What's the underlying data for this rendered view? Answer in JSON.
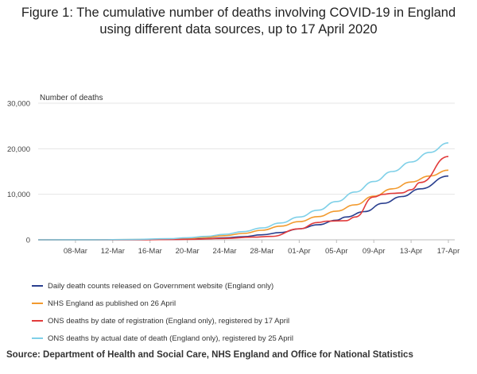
{
  "figure": {
    "title_line1": "Figure 1: The cumulative number of deaths involving COVID-19 in England",
    "title_line2": "using different data sources, up to 17 April 2020",
    "source": "Source: Department of Health and Social Care, NHS England and Office for National Statistics"
  },
  "chart_data": {
    "type": "line",
    "title": "Figure 1: The cumulative number of deaths involving COVID-19 in England using different data sources, up to 17 April 2020",
    "ylabel": "Number of deaths",
    "xlabel": "",
    "ylim": [
      0,
      30000
    ],
    "yticks": [
      0,
      10000,
      20000,
      30000
    ],
    "ytick_labels": [
      "0",
      "10,000",
      "20,000",
      "30,000"
    ],
    "x_start": "2020-03-04",
    "x_end": "2020-04-17",
    "xtick_labels": [
      "08-Mar",
      "12-Mar",
      "16-Mar",
      "20-Mar",
      "24-Mar",
      "28-Mar",
      "01-Apr",
      "05-Apr",
      "09-Apr",
      "13-Apr",
      "17-Apr"
    ],
    "xtick_dates": [
      "2020-03-08",
      "2020-03-12",
      "2020-03-16",
      "2020-03-20",
      "2020-03-24",
      "2020-03-28",
      "2020-04-01",
      "2020-04-05",
      "2020-04-09",
      "2020-04-13",
      "2020-04-17"
    ],
    "grid": true,
    "legend_position": "bottom",
    "series": [
      {
        "name": "Daily death counts released on Government website (England only)",
        "color": "#2a3f8f",
        "points": [
          [
            "2020-03-04",
            0
          ],
          [
            "2020-03-10",
            10
          ],
          [
            "2020-03-14",
            30
          ],
          [
            "2020-03-18",
            90
          ],
          [
            "2020-03-22",
            250
          ],
          [
            "2020-03-24",
            430
          ],
          [
            "2020-03-26",
            700
          ],
          [
            "2020-03-28",
            1100
          ],
          [
            "2020-03-30",
            1600
          ],
          [
            "2020-04-01",
            2400
          ],
          [
            "2020-04-03",
            3300
          ],
          [
            "2020-04-05",
            4300
          ],
          [
            "2020-04-06",
            5000
          ],
          [
            "2020-04-08",
            6200
          ],
          [
            "2020-04-10",
            8000
          ],
          [
            "2020-04-12",
            9500
          ],
          [
            "2020-04-14",
            11200
          ],
          [
            "2020-04-17",
            14000
          ]
        ]
      },
      {
        "name": "NHS England as published on 26 April",
        "color": "#f29a2e",
        "points": [
          [
            "2020-03-04",
            0
          ],
          [
            "2020-03-10",
            15
          ],
          [
            "2020-03-14",
            50
          ],
          [
            "2020-03-18",
            180
          ],
          [
            "2020-03-20",
            350
          ],
          [
            "2020-03-22",
            550
          ],
          [
            "2020-03-24",
            900
          ],
          [
            "2020-03-26",
            1400
          ],
          [
            "2020-03-28",
            2100
          ],
          [
            "2020-03-30",
            3000
          ],
          [
            "2020-04-01",
            4000
          ],
          [
            "2020-04-03",
            5100
          ],
          [
            "2020-04-05",
            6300
          ],
          [
            "2020-04-07",
            7700
          ],
          [
            "2020-04-09",
            9600
          ],
          [
            "2020-04-11",
            11200
          ],
          [
            "2020-04-13",
            12700
          ],
          [
            "2020-04-15",
            14000
          ],
          [
            "2020-04-17",
            15300
          ]
        ]
      },
      {
        "name": "ONS deaths by date of registration (England only), registered by 17 April",
        "color": "#e23b3b",
        "points": [
          [
            "2020-03-04",
            0
          ],
          [
            "2020-03-14",
            20
          ],
          [
            "2020-03-20",
            100
          ],
          [
            "2020-03-24",
            300
          ],
          [
            "2020-03-27",
            600
          ],
          [
            "2020-03-29",
            750
          ],
          [
            "2020-04-01",
            2400
          ],
          [
            "2020-04-03",
            3800
          ],
          [
            "2020-04-04",
            4100
          ],
          [
            "2020-04-06",
            4200
          ],
          [
            "2020-04-07",
            5000
          ],
          [
            "2020-04-09",
            9400
          ],
          [
            "2020-04-10",
            10000
          ],
          [
            "2020-04-11",
            10200
          ],
          [
            "2020-04-12",
            10300
          ],
          [
            "2020-04-13",
            11000
          ],
          [
            "2020-04-14",
            12600
          ],
          [
            "2020-04-17",
            18300
          ]
        ]
      },
      {
        "name": "ONS deaths by actual date of death (England only), registered by 25 April",
        "color": "#7fd0e8",
        "points": [
          [
            "2020-03-04",
            0
          ],
          [
            "2020-03-10",
            20
          ],
          [
            "2020-03-14",
            70
          ],
          [
            "2020-03-18",
            250
          ],
          [
            "2020-03-20",
            450
          ],
          [
            "2020-03-22",
            750
          ],
          [
            "2020-03-24",
            1200
          ],
          [
            "2020-03-26",
            1800
          ],
          [
            "2020-03-28",
            2600
          ],
          [
            "2020-03-30",
            3700
          ],
          [
            "2020-04-01",
            5000
          ],
          [
            "2020-04-03",
            6500
          ],
          [
            "2020-04-05",
            8400
          ],
          [
            "2020-04-07",
            10500
          ],
          [
            "2020-04-09",
            12800
          ],
          [
            "2020-04-11",
            15000
          ],
          [
            "2020-04-13",
            17100
          ],
          [
            "2020-04-15",
            19200
          ],
          [
            "2020-04-17",
            21300
          ]
        ]
      }
    ]
  }
}
